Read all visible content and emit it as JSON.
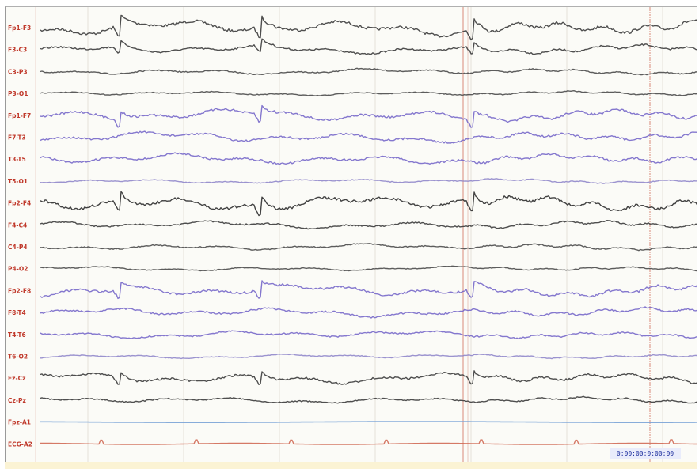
{
  "viewer": {
    "timestamp": "0:00:00:0:00:00",
    "channels": [
      {
        "label": "Fp1-F3",
        "color": "#3b3b3b",
        "amp": 10,
        "kind": "dark"
      },
      {
        "label": "F3-C3",
        "color": "#3b3b3b",
        "amp": 6,
        "kind": "dark"
      },
      {
        "label": "C3-P3",
        "color": "#4a4a4a",
        "amp": 4,
        "kind": "dark"
      },
      {
        "label": "P3-O1",
        "color": "#4a4a4a",
        "amp": 3,
        "kind": "dark"
      },
      {
        "label": "Fp1-F7",
        "color": "#6e5fc7",
        "amp": 8,
        "kind": "blue"
      },
      {
        "label": "F7-T3",
        "color": "#6e5fc7",
        "amp": 7,
        "kind": "blue"
      },
      {
        "label": "T3-T5",
        "color": "#6e5fc7",
        "amp": 7,
        "kind": "blue"
      },
      {
        "label": "T5-O1",
        "color": "#8a80c8",
        "amp": 3,
        "kind": "blue"
      },
      {
        "label": "Fp2-F4",
        "color": "#2e2e2e",
        "amp": 10,
        "kind": "dark"
      },
      {
        "label": "F4-C4",
        "color": "#3b3b3b",
        "amp": 5,
        "kind": "dark"
      },
      {
        "label": "C4-P4",
        "color": "#4a4a4a",
        "amp": 4,
        "kind": "dark"
      },
      {
        "label": "P4-O2",
        "color": "#4a4a4a",
        "amp": 3,
        "kind": "dark"
      },
      {
        "label": "Fp2-F8",
        "color": "#6e5fc7",
        "amp": 8,
        "kind": "blue"
      },
      {
        "label": "F8-T4",
        "color": "#6e5fc7",
        "amp": 6,
        "kind": "blue"
      },
      {
        "label": "T4-T6",
        "color": "#6e5fc7",
        "amp": 5,
        "kind": "blue"
      },
      {
        "label": "T6-O2",
        "color": "#8a80c8",
        "amp": 3,
        "kind": "blue"
      },
      {
        "label": "Fz-Cz",
        "color": "#3b3b3b",
        "amp": 7,
        "kind": "dark"
      },
      {
        "label": "Cz-Pz",
        "color": "#3b3b3b",
        "amp": 4,
        "kind": "dark"
      },
      {
        "label": "Fpz-A1",
        "color": "#7aa3d6",
        "amp": 0,
        "kind": "flat"
      },
      {
        "label": "ECG-A2",
        "color": "#d06a55",
        "amp": 1,
        "kind": "ecg"
      }
    ],
    "label_color": "#c0392b",
    "marker_color": "#d88a7a",
    "grid_color": "#e4e2da"
  }
}
